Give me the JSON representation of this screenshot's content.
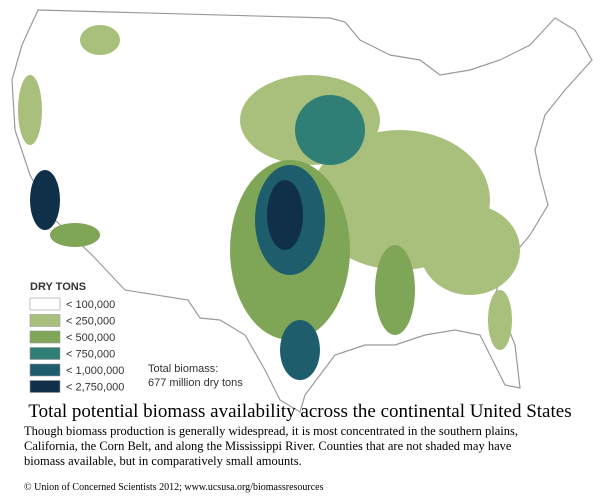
{
  "legend": {
    "title": "DRY TONS",
    "items": [
      {
        "label": "< 100,000",
        "color": "#ffffff"
      },
      {
        "label": "< 250,000",
        "color": "#a9bf7c"
      },
      {
        "label": "< 500,000",
        "color": "#7fa557"
      },
      {
        "label": "< 750,000",
        "color": "#2f7f77"
      },
      {
        "label": "< 1,000,000",
        "color": "#1e5d6c"
      },
      {
        "label": "< 2,750,000",
        "color": "#10304a"
      }
    ]
  },
  "total": {
    "label": "Total biomass:",
    "value": "677 million dry tons"
  },
  "title": "Total potential biomass availability across the continental United States",
  "caption": [
    "Though biomass production is generally widespread, it is most concentrated in the southern plains,",
    "California, the Corn Belt, and along the Mississippi River. Counties that are not shaded may have",
    "biomass available, but in comparatively small amounts."
  ],
  "footer": "© Union of Concerned Scientists  2012; www.ucsusa.org/biomassresources"
}
